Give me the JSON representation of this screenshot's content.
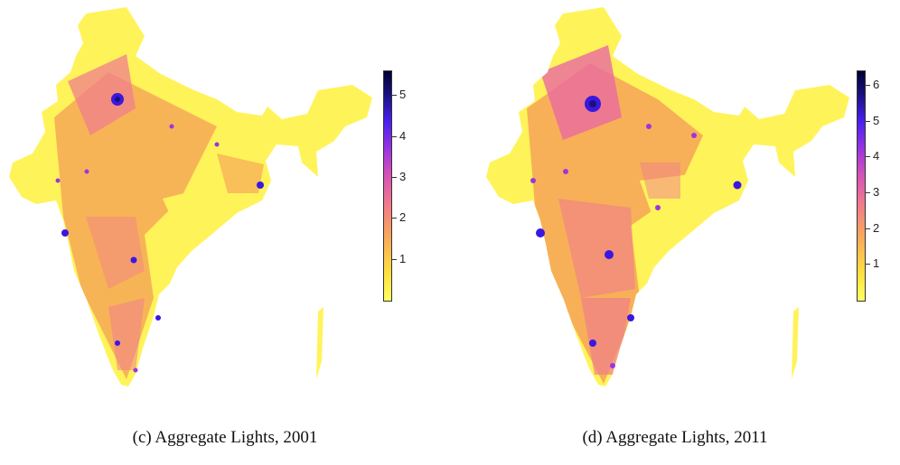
{
  "figures": [
    {
      "id": "c",
      "caption": "(c) Aggregate Lights, 2001",
      "legend": {
        "min": 0,
        "max": 5.6,
        "ticks": [
          "1",
          "2",
          "3",
          "4",
          "5"
        ],
        "tick_values": [
          1,
          2,
          3,
          4,
          5
        ]
      }
    },
    {
      "id": "d",
      "caption": "(d) Aggregate Lights, 2011",
      "legend": {
        "min": 0,
        "max": 6.4,
        "ticks": [
          "1",
          "2",
          "3",
          "4",
          "5",
          "6"
        ],
        "tick_values": [
          1,
          2,
          3,
          4,
          5,
          6
        ]
      }
    }
  ],
  "colors": {
    "scale": [
      "#ffff60",
      "#ffe040",
      "#f9a85a",
      "#f27a8c",
      "#d452b8",
      "#9b35e0",
      "#4a20f0",
      "#1a1080",
      "#000033"
    ],
    "land_background": "#fff35a",
    "urban_hotspot": "#3b18e0"
  }
}
